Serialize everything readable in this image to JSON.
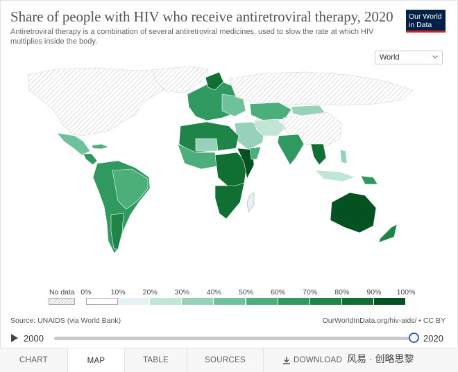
{
  "title": "Share of people with HIV who receive antiretroviral therapy, 2020",
  "subtitle": "Antiretroviral therapy is a combination of several antiretroviral medicines, used to slow the rate at which HIV multiplies inside the body.",
  "logo": {
    "line1": "Our World",
    "line2": "in Data",
    "bg": "#002147",
    "accent": "#ce261e"
  },
  "region_select": {
    "value": "World",
    "icon": "chevron-down-icon"
  },
  "legend": {
    "no_data_label": "No data",
    "ticks": [
      "0%",
      "10%",
      "20%",
      "30%",
      "40%",
      "50%",
      "60%",
      "70%",
      "80%",
      "90%",
      "100%"
    ],
    "colors": [
      "#ffffff",
      "#e3f2f2",
      "#c1e6d6",
      "#95d2b9",
      "#6fc19c",
      "#4cae7b",
      "#2f995f",
      "#1e8447",
      "#106f33",
      "#045221"
    ]
  },
  "source": "Source: UNAIDS (via World Bank)",
  "credit": "OurWorldInData.org/hiv-aids/ • CC BY",
  "timeline": {
    "start": "2000",
    "end": "2020"
  },
  "tabs": [
    "CHART",
    "MAP",
    "TABLE",
    "SOURCES",
    "DOWNLOAD"
  ],
  "active_tab": "MAP",
  "watermark": "风易 · 创略思黎"
}
